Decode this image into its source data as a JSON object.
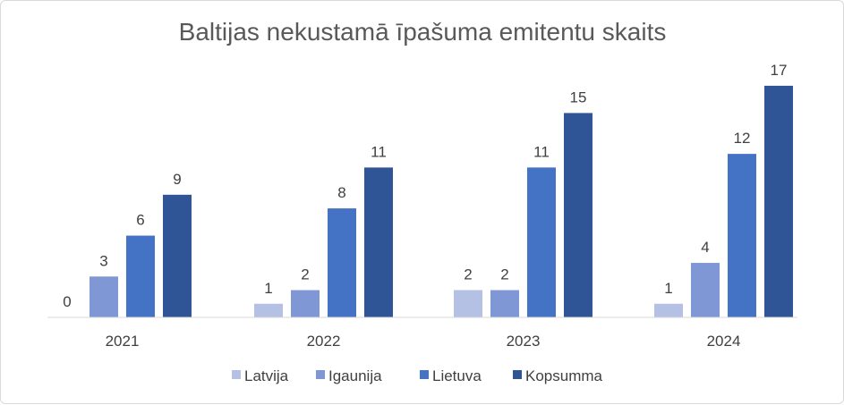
{
  "chart_data": {
    "type": "bar",
    "title": "Baltijas nekustamā īpašuma emitentu skaits",
    "categories": [
      "2021",
      "2022",
      "2023",
      "2024"
    ],
    "series": [
      {
        "name": "Latvija",
        "color": "#b4c0e4",
        "values": [
          0,
          1,
          2,
          1
        ]
      },
      {
        "name": "Igaunija",
        "color": "#7f97d4",
        "values": [
          3,
          2,
          2,
          4
        ]
      },
      {
        "name": "Lietuva",
        "color": "#4472c4",
        "values": [
          6,
          8,
          11,
          12
        ]
      },
      {
        "name": "Kopsumma",
        "color": "#2f5597",
        "values": [
          9,
          11,
          15,
          17
        ]
      }
    ],
    "ylim": [
      0,
      17
    ],
    "grid": false,
    "legend": "bottom"
  }
}
